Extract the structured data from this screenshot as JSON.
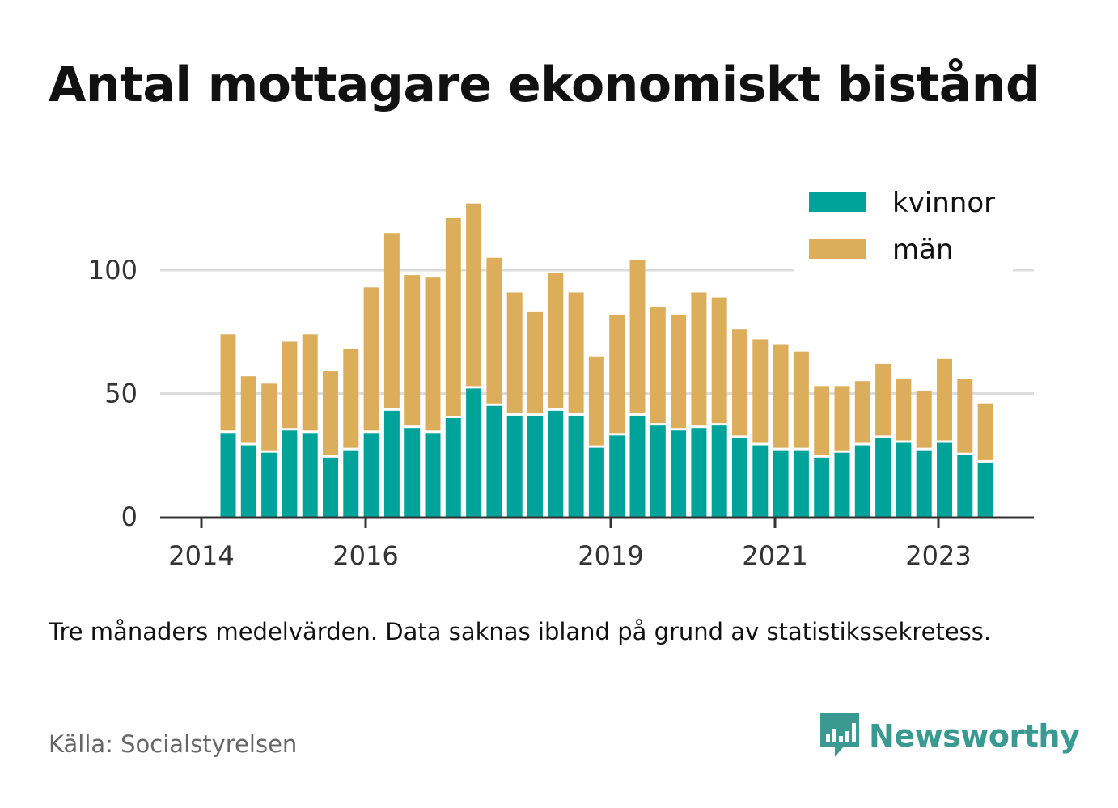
{
  "title": "Antal mottagare ekonomiskt bistånd",
  "note": "Tre månaders medelvärden. Data saknas ibland på grund av statistikssekretess.",
  "source": "Källa: Socialstyrelsen",
  "brand": "Newsworthy",
  "colors": {
    "kvinnor": "#00a39a",
    "man": "#dcae5c",
    "grid": "#dcdcdc",
    "axis": "#333333",
    "brand": "#3a9a92"
  },
  "chart_data": {
    "type": "bar",
    "stacked": true,
    "x_tick_labels": [
      "2014",
      "2016",
      "2019",
      "2021",
      "2023"
    ],
    "y_ticks": [
      0,
      50,
      100
    ],
    "ylim": [
      0,
      130
    ],
    "grid": true,
    "legend_position": "top-right",
    "series": [
      {
        "name": "kvinnor",
        "color": "#00a39a",
        "values": [
          34,
          29,
          26,
          35,
          34,
          24,
          27,
          34,
          43,
          36,
          34,
          40,
          52,
          45,
          41,
          41,
          43,
          41,
          28,
          33,
          41,
          37,
          35,
          36,
          37,
          32,
          29,
          27,
          27,
          24,
          26,
          29,
          32,
          30,
          27,
          30,
          25,
          22
        ]
      },
      {
        "name": "män",
        "color": "#dcae5c",
        "values": [
          40,
          28,
          28,
          36,
          40,
          35,
          41,
          59,
          72,
          62,
          63,
          81,
          75,
          60,
          50,
          42,
          56,
          50,
          37,
          49,
          63,
          48,
          47,
          55,
          52,
          44,
          43,
          43,
          40,
          29,
          27,
          26,
          30,
          26,
          24,
          34,
          31,
          24
        ]
      }
    ]
  }
}
